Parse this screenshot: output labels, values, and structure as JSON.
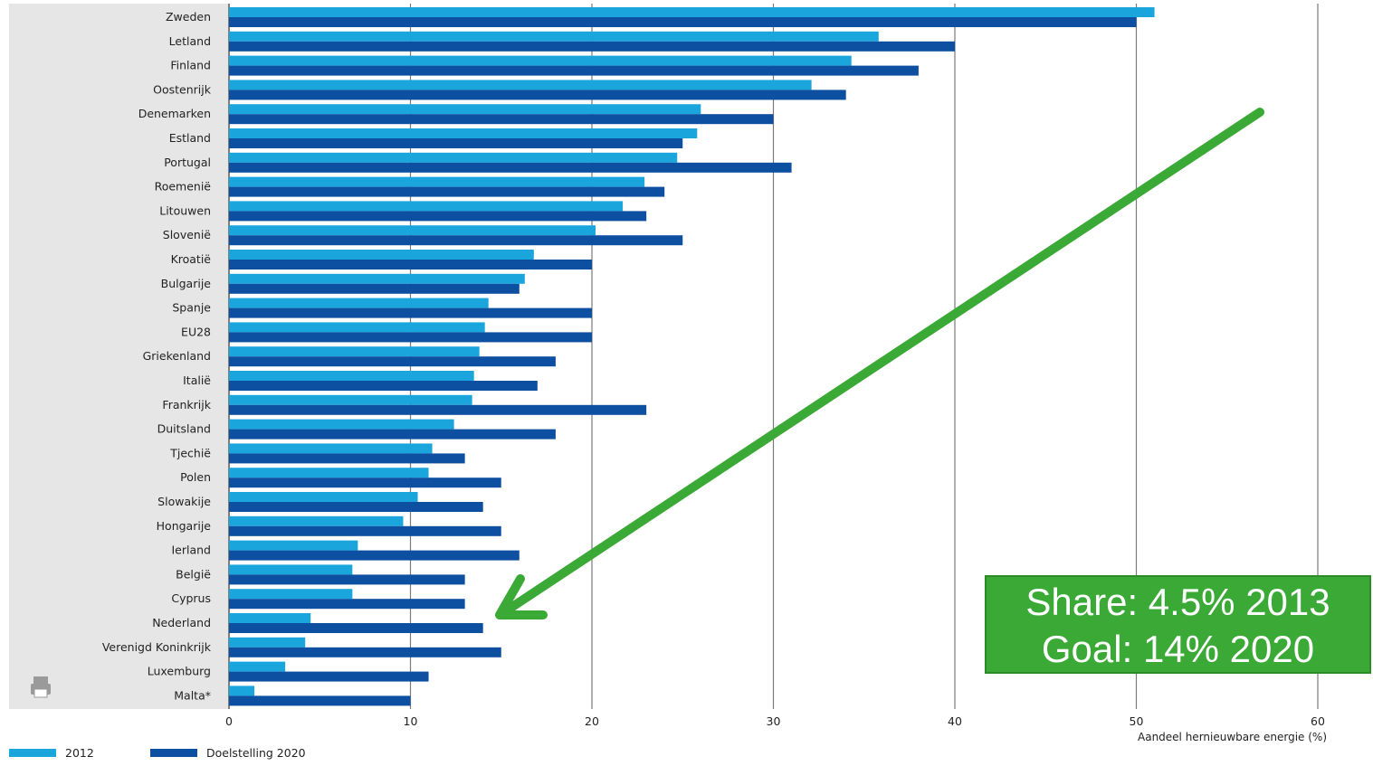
{
  "colors": {
    "series_2012": "#1aa6dc",
    "series_2020": "#0d4fa0",
    "label_panel": "#e6e6e6",
    "gridline": "#7a7a7a",
    "arrow": "#3aa935",
    "annotation_bg": "#3aa935"
  },
  "chart_data": {
    "type": "bar",
    "orientation": "horizontal",
    "categories": [
      "Zweden",
      "Letland",
      "Finland",
      "Oostenrijk",
      "Denemarken",
      "Estland",
      "Portugal",
      "Roemenië",
      "Litouwen",
      "Slovenië",
      "Kroatië",
      "Bulgarije",
      "Spanje",
      "EU28",
      "Griekenland",
      "Italië",
      "Frankrijk",
      "Duitsland",
      "Tjechië",
      "Polen",
      "Slowakije",
      "Hongarije",
      "Ierland",
      "België",
      "Cyprus",
      "Nederland",
      "Verenigd Koninkrijk",
      "Luxemburg",
      "Malta*"
    ],
    "series": [
      {
        "name": "2012",
        "color": "#1aa6dc",
        "values": [
          51,
          35.8,
          34.3,
          32.1,
          26,
          25.8,
          24.7,
          22.9,
          21.7,
          20.2,
          16.8,
          16.3,
          14.3,
          14.1,
          13.8,
          13.5,
          13.4,
          12.4,
          11.2,
          11,
          10.4,
          9.6,
          7.1,
          6.8,
          6.8,
          4.5,
          4.2,
          3.1,
          1.4
        ]
      },
      {
        "name": "Doelstelling 2020",
        "color": "#0d4fa0",
        "values": [
          50,
          40,
          38,
          34,
          30,
          25,
          31,
          24,
          23,
          25,
          20,
          16,
          20,
          20,
          18,
          17,
          23,
          18,
          13,
          15,
          14,
          15,
          16,
          13,
          13,
          14,
          15,
          11,
          10
        ]
      }
    ],
    "xlim": [
      0,
      60
    ],
    "xticks": [
      0,
      10,
      20,
      30,
      40,
      50,
      60
    ],
    "xlabel": "Aandeel hernieuwbare energie (%)",
    "grid": true,
    "legend": "bottom-left"
  },
  "annotation": {
    "line1": "Share: 4.5% 2013",
    "line2": "Goal: 14% 2020",
    "points_to": "Nederland"
  },
  "icons": {
    "label_panel_icon": "printer-icon"
  }
}
